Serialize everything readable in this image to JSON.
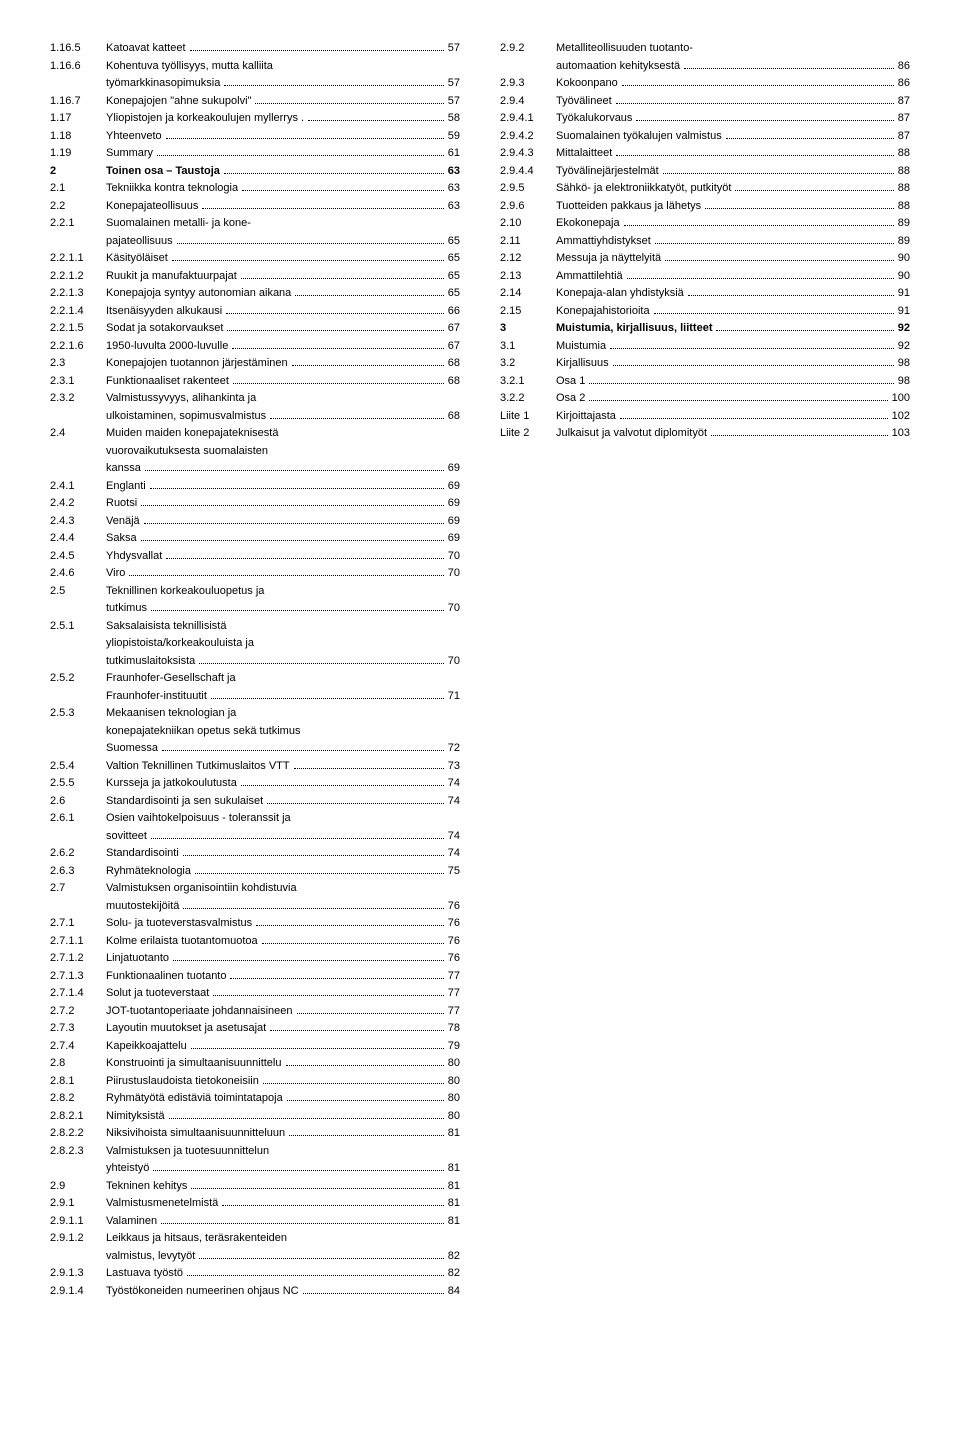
{
  "left": [
    {
      "num": "1.16.5",
      "label": "Katoavat katteet",
      "page": "57"
    },
    {
      "num": "1.16.6",
      "label": "Kohentuva työllisyys, mutta kalliita",
      "cont": "työmarkkinasopimuksia",
      "page": "57"
    },
    {
      "num": "1.16.7",
      "label": "Konepajojen \"ahne sukupolvi\"",
      "page": "57"
    },
    {
      "num": "1.17",
      "label": "Yliopistojen ja korkeakoulujen myllerrys .",
      "page": "58"
    },
    {
      "num": "1.18",
      "label": "Yhteenveto",
      "page": "59"
    },
    {
      "num": "1.19",
      "label": "Summary",
      "page": "61"
    },
    {
      "num": "2",
      "label": "Toinen osa – Taustoja",
      "page": "63",
      "bold": true
    },
    {
      "num": "2.1",
      "label": "Tekniikka kontra teknologia",
      "page": "63"
    },
    {
      "num": "2.2",
      "label": "Konepajateollisuus",
      "page": "63"
    },
    {
      "num": "2.2.1",
      "label": "Suomalainen metalli- ja kone-",
      "cont": "pajateollisuus",
      "page": "65"
    },
    {
      "num": "2.2.1.1",
      "label": "Käsityöläiset",
      "page": "65"
    },
    {
      "num": "2.2.1.2",
      "label": "Ruukit ja manufaktuurpajat",
      "page": "65"
    },
    {
      "num": "2.2.1.3",
      "label": "Konepajoja syntyy autonomian aikana",
      "page": "65"
    },
    {
      "num": "2.2.1.4",
      "label": "Itsenäisyyden alkukausi",
      "page": "66"
    },
    {
      "num": "2.2.1.5",
      "label": "Sodat ja sotakorvaukset",
      "page": "67"
    },
    {
      "num": "2.2.1.6",
      "label": "1950-luvulta 2000-luvulle",
      "page": "67"
    },
    {
      "num": "2.3",
      "label": "Konepajojen tuotannon järjestäminen",
      "page": "68"
    },
    {
      "num": "2.3.1",
      "label": "Funktionaaliset rakenteet",
      "page": "68"
    },
    {
      "num": "2.3.2",
      "label": "Valmistussyvyys, alihankinta ja",
      "cont": "ulkoistaminen, sopimusvalmistus",
      "page": "68"
    },
    {
      "num": "2.4",
      "label": "Muiden maiden konepajateknisestä",
      "cont": "vuorovaikutuksesta suomalaisten",
      "cont2": "kanssa",
      "page": "69"
    },
    {
      "num": "2.4.1",
      "label": "Englanti",
      "page": "69"
    },
    {
      "num": "2.4.2",
      "label": "Ruotsi",
      "page": "69"
    },
    {
      "num": "2.4.3",
      "label": "Venäjä",
      "page": "69"
    },
    {
      "num": "2.4.4",
      "label": "Saksa",
      "page": "69"
    },
    {
      "num": "2.4.5",
      "label": "Yhdysvallat",
      "page": "70"
    },
    {
      "num": "2.4.6",
      "label": "Viro",
      "page": "70"
    },
    {
      "num": "2.5",
      "label": "Teknillinen korkeakouluopetus ja",
      "cont": "tutkimus",
      "page": "70"
    },
    {
      "num": "2.5.1",
      "label": "Saksalaisista teknillisistä",
      "cont": "yliopistoista/korkeakouluista ja",
      "cont2": "tutkimuslaitoksista",
      "page": "70"
    },
    {
      "num": "2.5.2",
      "label": "Fraunhofer-Gesellschaft ja",
      "cont": "Fraunhofer-instituutit",
      "page": "71"
    },
    {
      "num": "2.5.3",
      "label": "Mekaanisen teknologian ja",
      "cont": "konepajatekniikan opetus sekä tutkimus",
      "cont2": "Suomessa",
      "page": "72"
    },
    {
      "num": "2.5.4",
      "label": "Valtion Teknillinen Tutkimuslaitos VTT",
      "page": "73"
    },
    {
      "num": "2.5.5",
      "label": "Kursseja ja jatkokoulutusta",
      "page": "74"
    },
    {
      "num": "2.6",
      "label": "Standardisointi ja sen sukulaiset",
      "page": "74"
    },
    {
      "num": "2.6.1",
      "label": "Osien vaihtokelpoisuus - toleranssit ja",
      "cont": "sovitteet",
      "page": "74"
    },
    {
      "num": "2.6.2",
      "label": "Standardisointi",
      "page": "74"
    },
    {
      "num": "2.6.3",
      "label": "Ryhmäteknologia",
      "page": "75"
    },
    {
      "num": "2.7",
      "label": "Valmistuksen organisointiin kohdistuvia",
      "cont": "muutostekijöitä",
      "page": "76"
    },
    {
      "num": "2.7.1",
      "label": "Solu- ja tuoteverstasvalmistus",
      "page": "76"
    },
    {
      "num": "2.7.1.1",
      "label": "Kolme erilaista tuotantomuotoa",
      "page": "76"
    },
    {
      "num": "2.7.1.2",
      "label": "Linjatuotanto",
      "page": "76"
    },
    {
      "num": "2.7.1.3",
      "label": "Funktionaalinen tuotanto",
      "page": "77"
    },
    {
      "num": "2.7.1.4",
      "label": "Solut ja tuoteverstaat",
      "page": "77"
    },
    {
      "num": "2.7.2",
      "label": "JOT-tuotantoperiaate johdannaisineen",
      "page": "77"
    },
    {
      "num": "2.7.3",
      "label": "Layoutin muutokset ja asetusajat",
      "page": "78"
    },
    {
      "num": "2.7.4",
      "label": "Kapeikkoajattelu",
      "page": "79"
    },
    {
      "num": "2.8",
      "label": "Konstruointi ja simultaanisuunnittelu",
      "page": "80"
    },
    {
      "num": "2.8.1",
      "label": "Piirustuslaudoista tietokoneisiin",
      "page": "80"
    },
    {
      "num": "2.8.2",
      "label": "Ryhmätyötä edistäviä toimintatapoja",
      "page": "80"
    },
    {
      "num": "2.8.2.1",
      "label": "Nimityksistä",
      "page": "80"
    },
    {
      "num": "2.8.2.2",
      "label": "Niksivihoista simultaanisuunnitteluun",
      "page": "81"
    },
    {
      "num": "2.8.2.3",
      "label": "Valmistuksen ja tuotesuunnittelun",
      "cont": "yhteistyö",
      "page": "81"
    },
    {
      "num": "2.9",
      "label": "Tekninen kehitys",
      "page": "81"
    },
    {
      "num": "2.9.1",
      "label": "Valmistusmenetelmistä",
      "page": "81"
    },
    {
      "num": "2.9.1.1",
      "label": "Valaminen",
      "page": "81"
    },
    {
      "num": "2.9.1.2",
      "label": "Leikkaus ja hitsaus, teräsrakenteiden",
      "cont": "valmistus, levytyöt",
      "page": "82"
    },
    {
      "num": "2.9.1.3",
      "label": "Lastuava työstö",
      "page": "82"
    },
    {
      "num": "2.9.1.4",
      "label": "Työstökoneiden numeerinen ohjaus NC",
      "page": "84"
    }
  ],
  "right": [
    {
      "num": "2.9.2",
      "label": "Metalliteollisuuden tuotanto-",
      "cont": "automaation kehityksestä",
      "page": "86"
    },
    {
      "num": "2.9.3",
      "label": "Kokoonpano",
      "page": "86"
    },
    {
      "num": "2.9.4",
      "label": "Työvälineet",
      "page": "87"
    },
    {
      "num": "2.9.4.1",
      "label": "Työkalukorvaus",
      "page": "87"
    },
    {
      "num": "2.9.4.2",
      "label": "Suomalainen työkalujen valmistus",
      "page": "87"
    },
    {
      "num": "2.9.4.3",
      "label": "Mittalaitteet",
      "page": "88"
    },
    {
      "num": "2.9.4.4",
      "label": "Työvälinejärjestelmät",
      "page": "88"
    },
    {
      "num": "2.9.5",
      "label": "Sähkö- ja elektroniikkatyöt, putkityöt",
      "page": "88"
    },
    {
      "num": "2.9.6",
      "label": "Tuotteiden pakkaus ja lähetys",
      "page": "88"
    },
    {
      "num": "2.10",
      "label": "Ekokonepaja",
      "page": "89"
    },
    {
      "num": "2.11",
      "label": "Ammattiyhdistykset",
      "page": "89"
    },
    {
      "num": "2.12",
      "label": "Messuja ja näyttelyitä",
      "page": "90"
    },
    {
      "num": "2.13",
      "label": "Ammattilehtiä",
      "page": "90"
    },
    {
      "num": "2.14",
      "label": "Konepaja-alan yhdistyksiä",
      "page": "91"
    },
    {
      "num": "2.15",
      "label": "Konepajahistorioita",
      "page": "91"
    },
    {
      "num": "3",
      "label": "Muistumia, kirjallisuus, liitteet",
      "page": "92",
      "bold": true
    },
    {
      "num": "3.1",
      "label": "Muistumia",
      "page": "92"
    },
    {
      "num": "3.2",
      "label": "Kirjallisuus",
      "page": "98"
    },
    {
      "num": "3.2.1",
      "label": "Osa 1",
      "page": "98"
    },
    {
      "num": "3.2.2",
      "label": "Osa 2",
      "page": "100"
    },
    {
      "num": "Liite 1",
      "label": "Kirjoittajasta",
      "page": "102"
    },
    {
      "num": "Liite 2",
      "label": "Julkaisut ja valvotut diplomityöt",
      "page": "103"
    }
  ]
}
